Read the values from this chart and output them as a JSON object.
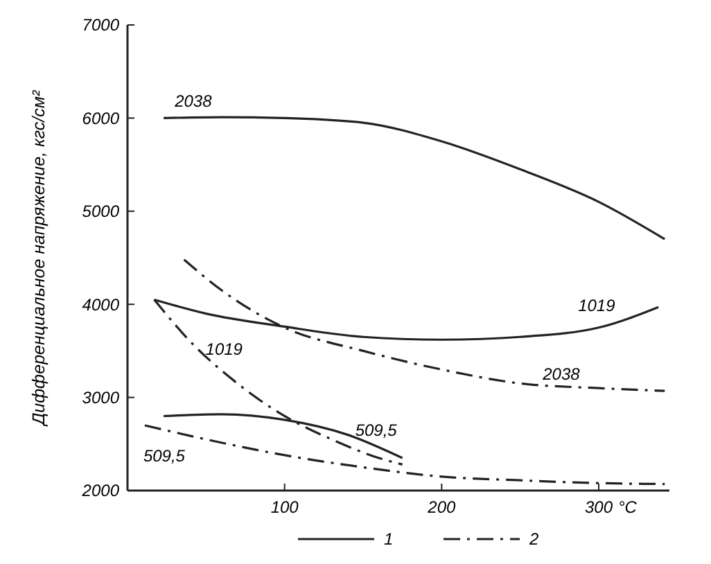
{
  "chart_data": {
    "type": "line",
    "ylabel": "Дифференциальное напряжение, кгс/см²",
    "xlabel": "°C",
    "xlim": [
      0,
      345
    ],
    "ylim": [
      2000,
      7000
    ],
    "xticks": [
      100,
      200,
      300
    ],
    "yticks": [
      2000,
      3000,
      4000,
      5000,
      6000,
      7000
    ],
    "grid": false,
    "marker": "none",
    "series": [
      {
        "name": "2038",
        "color": "#222222",
        "line_style": "solid",
        "x": [
          23,
          60,
          100,
          150,
          200,
          250,
          300,
          342
        ],
        "values": [
          6000,
          6010,
          6000,
          5950,
          5750,
          5450,
          5100,
          4700
        ]
      },
      {
        "name": "1019",
        "color": "#222222",
        "line_style": "solid",
        "x": [
          17,
          50,
          100,
          150,
          200,
          250,
          300,
          338
        ],
        "values": [
          4050,
          3900,
          3760,
          3650,
          3620,
          3650,
          3750,
          3970
        ]
      },
      {
        "name": "509,5",
        "color": "#222222",
        "line_style": "solid",
        "x": [
          23,
          60,
          100,
          140,
          175
        ],
        "values": [
          2800,
          2820,
          2760,
          2600,
          2350
        ]
      },
      {
        "name": "2038",
        "color": "#222222",
        "line_style": "dashdot",
        "x": [
          36,
          60,
          100,
          150,
          200,
          250,
          300,
          342
        ],
        "values": [
          4480,
          4150,
          3750,
          3500,
          3300,
          3150,
          3100,
          3070
        ]
      },
      {
        "name": "1019",
        "color": "#222222",
        "line_style": "dashdot",
        "x": [
          17,
          40,
          70,
          100,
          130,
          160,
          175
        ],
        "values": [
          4050,
          3600,
          3150,
          2800,
          2550,
          2350,
          2280
        ]
      },
      {
        "name": "509,5",
        "color": "#222222",
        "line_style": "dashdot",
        "x": [
          11,
          50,
          100,
          150,
          200,
          250,
          300,
          342
        ],
        "values": [
          2700,
          2550,
          2380,
          2250,
          2150,
          2110,
          2080,
          2070
        ]
      }
    ],
    "annotations": [
      "1",
      "2"
    ]
  }
}
